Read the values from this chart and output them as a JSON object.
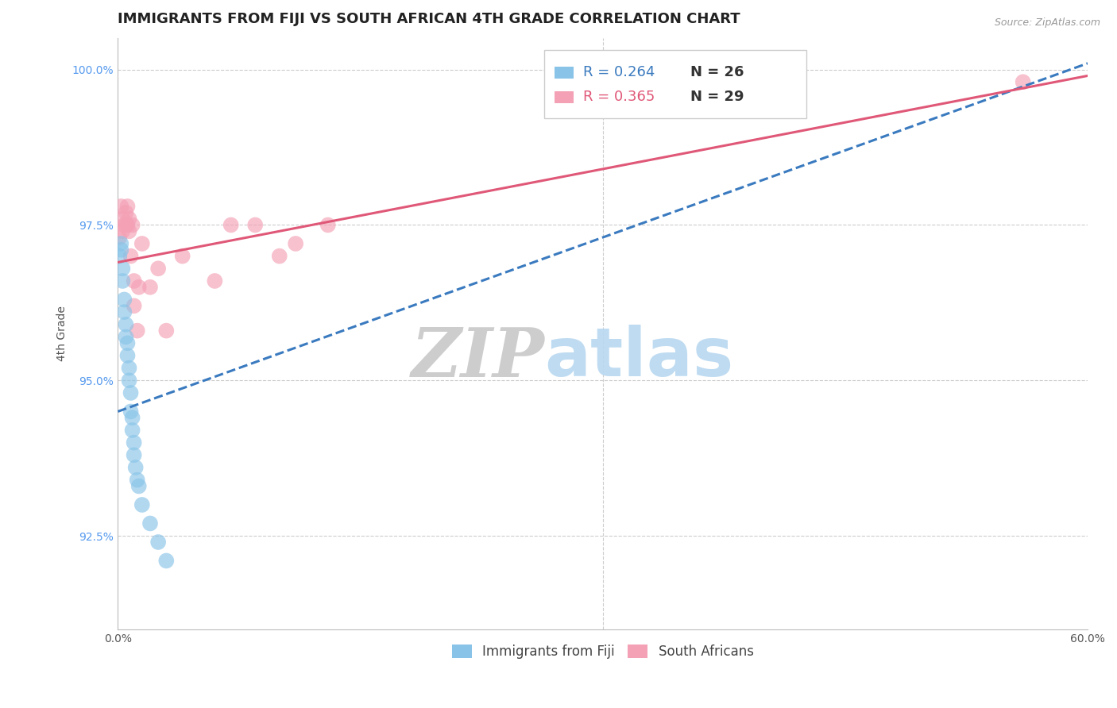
{
  "title": "IMMIGRANTS FROM FIJI VS SOUTH AFRICAN 4TH GRADE CORRELATION CHART",
  "source": "Source: ZipAtlas.com",
  "ylabel": "4th Grade",
  "xlim": [
    0.0,
    0.6
  ],
  "ylim": [
    0.91,
    1.005
  ],
  "xticks": [
    0.0,
    0.1,
    0.2,
    0.3,
    0.4,
    0.5,
    0.6
  ],
  "xticklabels": [
    "0.0%",
    "",
    "",
    "",
    "",
    "",
    "60.0%"
  ],
  "yticks": [
    0.925,
    0.95,
    0.975,
    1.0
  ],
  "yticklabels": [
    "92.5%",
    "95.0%",
    "97.5%",
    "100.0%"
  ],
  "blue_color": "#89c4e8",
  "pink_color": "#f4a0b5",
  "blue_line_color": "#3a7abf",
  "pink_line_color": "#e05878",
  "legend_blue_R": "R = 0.264",
  "legend_blue_N": "N = 26",
  "legend_pink_R": "R = 0.365",
  "legend_pink_N": "N = 29",
  "blue_x": [
    0.001,
    0.002,
    0.002,
    0.003,
    0.003,
    0.004,
    0.004,
    0.005,
    0.005,
    0.006,
    0.006,
    0.007,
    0.007,
    0.008,
    0.008,
    0.009,
    0.009,
    0.01,
    0.01,
    0.011,
    0.012,
    0.013,
    0.015,
    0.02,
    0.025,
    0.03
  ],
  "blue_y": [
    0.97,
    0.972,
    0.971,
    0.968,
    0.966,
    0.963,
    0.961,
    0.959,
    0.957,
    0.956,
    0.954,
    0.952,
    0.95,
    0.948,
    0.945,
    0.944,
    0.942,
    0.94,
    0.938,
    0.936,
    0.934,
    0.933,
    0.93,
    0.927,
    0.924,
    0.921
  ],
  "pink_x": [
    0.001,
    0.002,
    0.003,
    0.003,
    0.004,
    0.005,
    0.005,
    0.006,
    0.006,
    0.007,
    0.007,
    0.008,
    0.009,
    0.01,
    0.01,
    0.012,
    0.013,
    0.015,
    0.02,
    0.025,
    0.03,
    0.04,
    0.06,
    0.07,
    0.085,
    0.1,
    0.11,
    0.13,
    0.56
  ],
  "pink_y": [
    0.973,
    0.978,
    0.976,
    0.974,
    0.975,
    0.975,
    0.977,
    0.978,
    0.975,
    0.974,
    0.976,
    0.97,
    0.975,
    0.966,
    0.962,
    0.958,
    0.965,
    0.972,
    0.965,
    0.968,
    0.958,
    0.97,
    0.966,
    0.975,
    0.975,
    0.97,
    0.972,
    0.975,
    0.998
  ],
  "watermark_zip": "ZIP",
  "watermark_atlas": "atlas",
  "background_color": "#ffffff",
  "grid_color": "#cccccc",
  "title_fontsize": 13,
  "axis_label_fontsize": 10,
  "tick_fontsize": 10,
  "marker_size": 200,
  "blue_line_x": [
    0.0,
    0.6
  ],
  "blue_line_y": [
    0.945,
    1.001
  ],
  "pink_line_x": [
    0.0,
    0.6
  ],
  "pink_line_y": [
    0.969,
    0.999
  ]
}
